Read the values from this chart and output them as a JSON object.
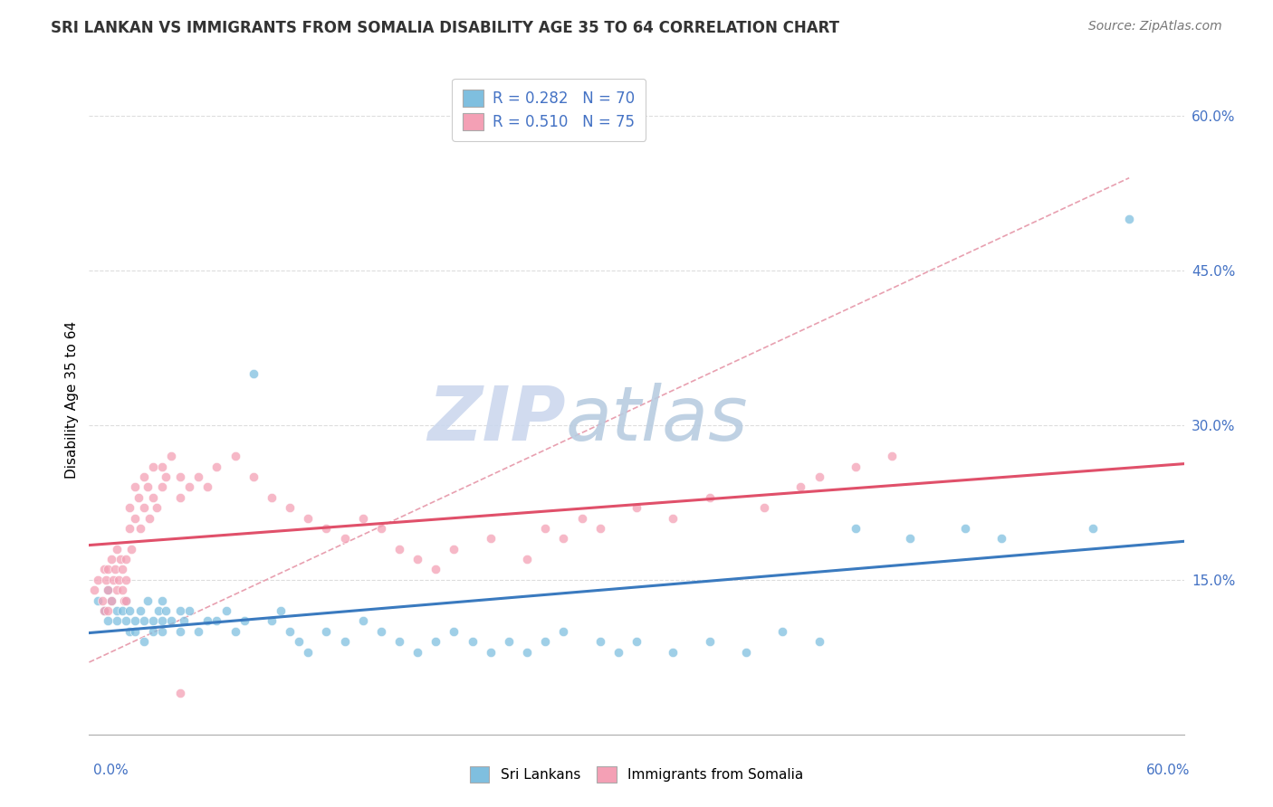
{
  "title": "SRI LANKAN VS IMMIGRANTS FROM SOMALIA DISABILITY AGE 35 TO 64 CORRELATION CHART",
  "source": "Source: ZipAtlas.com",
  "ylabel": "Disability Age 35 to 64",
  "xmin": 0.0,
  "xmax": 0.6,
  "ymin": 0.0,
  "ymax": 0.65,
  "blue_color": "#7fbfdf",
  "pink_color": "#f4a0b5",
  "blue_line_color": "#3a7abf",
  "pink_line_color": "#e0506a",
  "dashed_line_color": "#e8a0b0",
  "watermark_zip_color": "#ccd8ee",
  "watermark_atlas_color": "#b8cce0",
  "sri_lankan_x": [
    0.005,
    0.008,
    0.01,
    0.01,
    0.012,
    0.015,
    0.015,
    0.018,
    0.02,
    0.02,
    0.022,
    0.022,
    0.025,
    0.025,
    0.028,
    0.03,
    0.03,
    0.032,
    0.035,
    0.035,
    0.038,
    0.04,
    0.04,
    0.04,
    0.042,
    0.045,
    0.05,
    0.05,
    0.052,
    0.055,
    0.06,
    0.065,
    0.07,
    0.075,
    0.08,
    0.085,
    0.09,
    0.1,
    0.105,
    0.11,
    0.115,
    0.12,
    0.13,
    0.14,
    0.15,
    0.16,
    0.17,
    0.18,
    0.19,
    0.2,
    0.21,
    0.22,
    0.23,
    0.24,
    0.25,
    0.26,
    0.28,
    0.29,
    0.3,
    0.32,
    0.34,
    0.36,
    0.38,
    0.4,
    0.42,
    0.45,
    0.48,
    0.5,
    0.55,
    0.57
  ],
  "sri_lankan_y": [
    0.13,
    0.12,
    0.14,
    0.11,
    0.13,
    0.12,
    0.11,
    0.12,
    0.13,
    0.11,
    0.12,
    0.1,
    0.11,
    0.1,
    0.12,
    0.11,
    0.09,
    0.13,
    0.11,
    0.1,
    0.12,
    0.13,
    0.11,
    0.1,
    0.12,
    0.11,
    0.12,
    0.1,
    0.11,
    0.12,
    0.1,
    0.11,
    0.11,
    0.12,
    0.1,
    0.11,
    0.35,
    0.11,
    0.12,
    0.1,
    0.09,
    0.08,
    0.1,
    0.09,
    0.11,
    0.1,
    0.09,
    0.08,
    0.09,
    0.1,
    0.09,
    0.08,
    0.09,
    0.08,
    0.09,
    0.1,
    0.09,
    0.08,
    0.09,
    0.08,
    0.09,
    0.08,
    0.1,
    0.09,
    0.2,
    0.19,
    0.2,
    0.19,
    0.2,
    0.5
  ],
  "somalia_x": [
    0.003,
    0.005,
    0.007,
    0.008,
    0.008,
    0.009,
    0.01,
    0.01,
    0.01,
    0.012,
    0.012,
    0.013,
    0.014,
    0.015,
    0.015,
    0.016,
    0.017,
    0.018,
    0.018,
    0.019,
    0.02,
    0.02,
    0.02,
    0.022,
    0.022,
    0.023,
    0.025,
    0.025,
    0.027,
    0.028,
    0.03,
    0.03,
    0.032,
    0.033,
    0.035,
    0.035,
    0.037,
    0.04,
    0.04,
    0.042,
    0.045,
    0.05,
    0.05,
    0.055,
    0.06,
    0.065,
    0.07,
    0.08,
    0.09,
    0.1,
    0.11,
    0.12,
    0.13,
    0.14,
    0.15,
    0.16,
    0.17,
    0.18,
    0.19,
    0.2,
    0.22,
    0.24,
    0.25,
    0.26,
    0.27,
    0.28,
    0.3,
    0.32,
    0.34,
    0.37,
    0.39,
    0.4,
    0.42,
    0.44,
    0.05
  ],
  "somalia_y": [
    0.14,
    0.15,
    0.13,
    0.16,
    0.12,
    0.15,
    0.16,
    0.14,
    0.12,
    0.17,
    0.13,
    0.15,
    0.16,
    0.18,
    0.14,
    0.15,
    0.17,
    0.14,
    0.16,
    0.13,
    0.17,
    0.15,
    0.13,
    0.22,
    0.2,
    0.18,
    0.24,
    0.21,
    0.23,
    0.2,
    0.25,
    0.22,
    0.24,
    0.21,
    0.26,
    0.23,
    0.22,
    0.26,
    0.24,
    0.25,
    0.27,
    0.25,
    0.23,
    0.24,
    0.25,
    0.24,
    0.26,
    0.27,
    0.25,
    0.23,
    0.22,
    0.21,
    0.2,
    0.19,
    0.21,
    0.2,
    0.18,
    0.17,
    0.16,
    0.18,
    0.19,
    0.17,
    0.2,
    0.19,
    0.21,
    0.2,
    0.22,
    0.21,
    0.23,
    0.22,
    0.24,
    0.25,
    0.26,
    0.27,
    0.04
  ]
}
